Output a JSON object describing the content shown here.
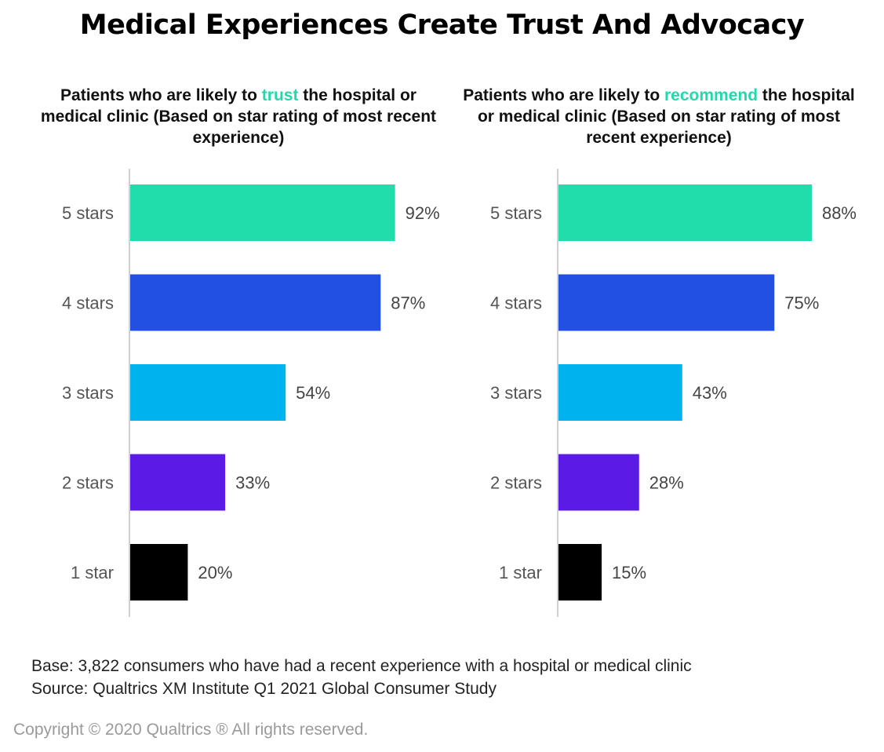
{
  "title": "Medical Experiences Create Trust And Advocacy",
  "colors": {
    "highlight": "#21d9ad",
    "5 stars": "#21ddab",
    "4 stars": "#2250e3",
    "3 stars": "#00b2ee",
    "2 stars": "#5b1ae5",
    "1 star": "#000000"
  },
  "chart_data": [
    {
      "type": "bar",
      "orientation": "horizontal",
      "title_parts": [
        "Patients who are likely to ",
        "trust",
        " the hospital or medical clinic (Based on star rating of most recent experience)"
      ],
      "categories": [
        "5 stars",
        "4 stars",
        "3 stars",
        "2 stars",
        "1 star"
      ],
      "values": [
        92,
        87,
        54,
        33,
        20
      ],
      "value_labels": [
        "92%",
        "87%",
        "54%",
        "33%",
        "20%"
      ],
      "xlim": [
        0,
        100
      ],
      "grid": false,
      "legend": "none"
    },
    {
      "type": "bar",
      "orientation": "horizontal",
      "title_parts": [
        "Patients who are likely to ",
        "recommend",
        " the hospital or medical clinic (Based on star rating of most recent experience)"
      ],
      "categories": [
        "5 stars",
        "4 stars",
        "3 stars",
        "2 stars",
        "1 star"
      ],
      "values": [
        88,
        75,
        43,
        28,
        15
      ],
      "value_labels": [
        "88%",
        "75%",
        "43%",
        "28%",
        "15%"
      ],
      "xlim": [
        0,
        100
      ],
      "grid": false,
      "legend": "none"
    }
  ],
  "footer": {
    "base": "Base: 3,822 consumers who have had a recent experience with a hospital or medical clinic",
    "source": "Source: Qualtrics XM Institute Q1 2021 Global Consumer Study"
  },
  "copyright": "Copyright © 2020 Qualtrics ® All rights reserved."
}
